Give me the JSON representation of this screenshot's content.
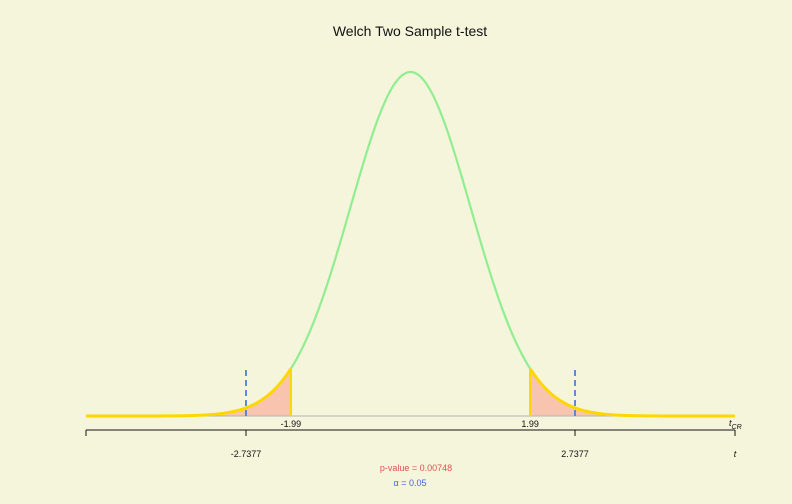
{
  "chart_data": {
    "type": "area",
    "title": "Welch Two Sample t-test",
    "distribution": "t",
    "xlim": [
      -5.4,
      5.4
    ],
    "critical_values": [
      -1.99,
      1.99
    ],
    "critical_labels": [
      "-1.99",
      "1.99"
    ],
    "test_statistic": [
      -2.7377,
      2.7377
    ],
    "test_statistic_labels": [
      "-2.7377",
      "2.7377"
    ],
    "axis_label_tcr": "t",
    "axis_label_tcr_sub": "CR",
    "axis_label_t": "t",
    "p_value_text": "p-value = 0.00748",
    "alpha_symbol": "α",
    "alpha_text": " = 0.05",
    "colors": {
      "background": "#f5f5dc",
      "curve": "#90ee90",
      "tails": "#ffd700",
      "tail_fill": "#f8c4b0",
      "stat_line": "#4f7fd8",
      "p_value": "#e05050",
      "alpha": "#4a64d8"
    }
  }
}
